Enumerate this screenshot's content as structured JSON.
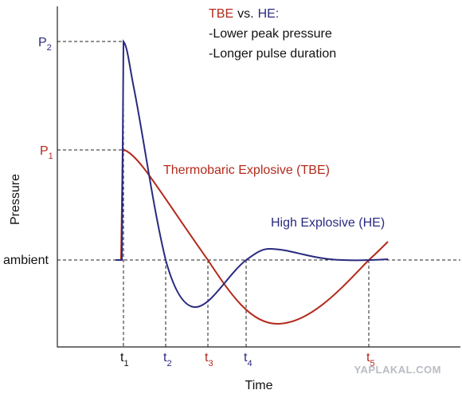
{
  "legend": {
    "tbe": "TBE",
    "vs": "vs.",
    "he": "HE:",
    "point1": "-Lower peak pressure",
    "point2": "-Longer pulse duration"
  },
  "y_labels": {
    "p2": {
      "letter": "P",
      "sub": "2"
    },
    "p1": {
      "letter": "P",
      "sub": "1"
    },
    "ambient": "ambient"
  },
  "axis_titles": {
    "y": "Pressure",
    "x": "Time"
  },
  "t_labels": [
    {
      "letter": "t",
      "sub": "1"
    },
    {
      "letter": "t",
      "sub": "2"
    },
    {
      "letter": "t",
      "sub": "3"
    },
    {
      "letter": "t",
      "sub": "4"
    },
    {
      "letter": "t",
      "sub": "5"
    }
  ],
  "curve_labels": {
    "tbe": "Thermobaric Explosive (TBE)",
    "he": "High Explosive (HE)"
  },
  "watermark": "YAPLAKAL.COM"
}
